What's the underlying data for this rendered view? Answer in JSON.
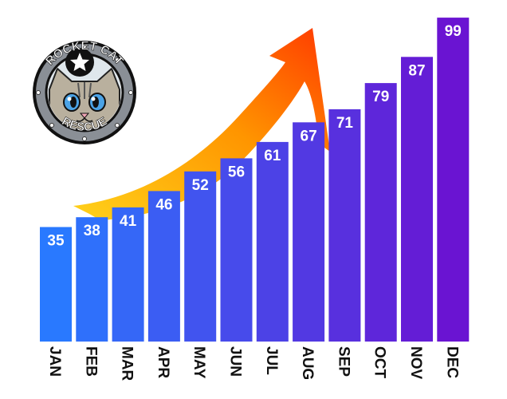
{
  "logo": {
    "top_text": "ROCKET CAT",
    "bottom_text": "RESCUE"
  },
  "colors": {
    "bar_start": "#2979ff",
    "bar_end": "#6a14d2",
    "arrow_start": "#ffd21a",
    "arrow_end": "#ff3a00",
    "label_text": "#111111",
    "value_text": "#ffffff"
  },
  "chart_data": {
    "type": "bar",
    "title": "",
    "xlabel": "",
    "ylabel": "",
    "ylim": [
      0,
      100
    ],
    "grid": false,
    "legend": "none",
    "categories": [
      "JAN",
      "FEB",
      "MAR",
      "APR",
      "MAY",
      "JUN",
      "JUL",
      "AUG",
      "SEP",
      "OCT",
      "NOV",
      "DEC"
    ],
    "values": [
      35,
      38,
      41,
      46,
      52,
      56,
      61,
      67,
      71,
      79,
      87,
      99
    ],
    "annotations": [
      "upward-trend-arrow"
    ]
  }
}
